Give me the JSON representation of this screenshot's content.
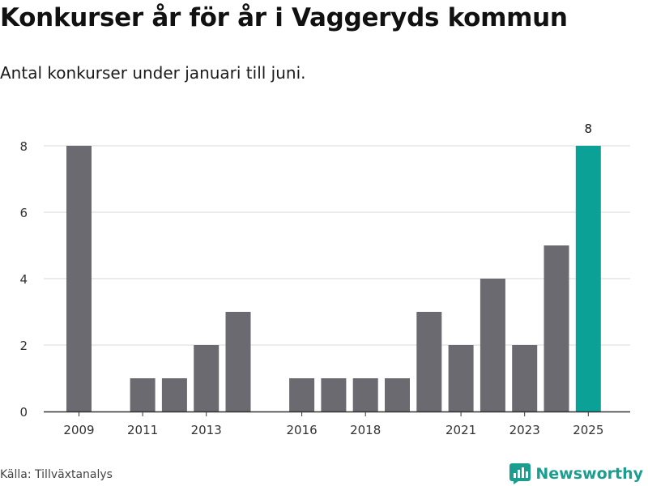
{
  "title": "Konkurser år för år i Vaggeryds kommun",
  "subtitle": "Antal konkurser under januari till juni.",
  "source": "Källa: Tillväxtanalys",
  "brand": {
    "name": "Newsworthy",
    "icon": "newsworthy-logo-icon",
    "color": "#1b9e8f"
  },
  "chart_data": {
    "type": "bar",
    "categories": [
      "2009",
      "2010",
      "2011",
      "2012",
      "2013",
      "2014",
      "2015",
      "2016",
      "2017",
      "2018",
      "2019",
      "2020",
      "2021",
      "2022",
      "2023",
      "2024",
      "2025"
    ],
    "values": [
      8,
      0,
      1,
      1,
      2,
      3,
      0,
      1,
      1,
      1,
      1,
      3,
      2,
      4,
      2,
      5,
      8
    ],
    "xticks": [
      "2009",
      "2011",
      "2013",
      "2016",
      "2018",
      "2021",
      "2023",
      "2025"
    ],
    "yticks": [
      0,
      2,
      4,
      6,
      8
    ],
    "ylim": [
      0,
      8
    ],
    "highlight": {
      "category": "2025",
      "label": "8",
      "color": "#0ba197"
    },
    "bar_color": "#6b6a70",
    "grid": true,
    "xlabel": "",
    "ylabel": ""
  }
}
